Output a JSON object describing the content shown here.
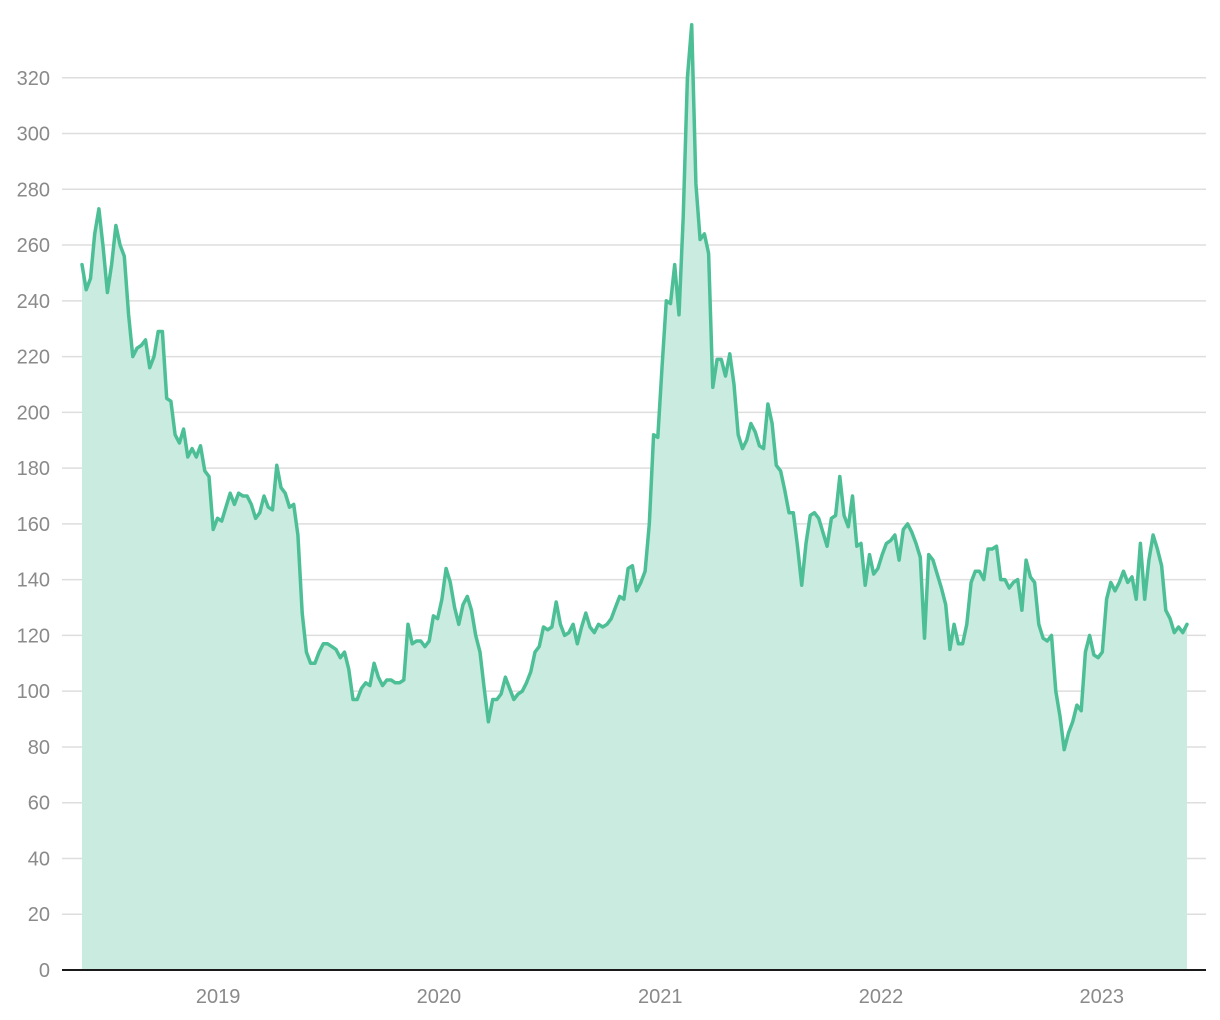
{
  "chart_data": {
    "type": "area",
    "title": "",
    "xlabel": "",
    "ylabel": "",
    "ylim": [
      0,
      340
    ],
    "yticks": [
      0,
      20,
      40,
      60,
      80,
      100,
      120,
      140,
      160,
      180,
      200,
      220,
      240,
      260,
      280,
      300,
      320
    ],
    "xlim": [
      "2018-05-21",
      "2023-05-22"
    ],
    "xticks": [
      {
        "date": "2019-01-01",
        "label": "2019"
      },
      {
        "date": "2020-01-01",
        "label": "2020"
      },
      {
        "date": "2021-01-01",
        "label": "2021"
      },
      {
        "date": "2022-01-01",
        "label": "2022"
      },
      {
        "date": "2023-01-01",
        "label": "2023"
      }
    ],
    "grid": true,
    "legend": "none",
    "colors": {
      "line": "#4dbf96",
      "fill": "#c9ebe0",
      "grid": "#dedede",
      "axis": "#1a1a1a",
      "tick": "#8a8a8a"
    },
    "series": [
      {
        "x": [
          "2018-05-21",
          "2018-05-28",
          "2018-06-04",
          "2018-06-11",
          "2018-06-18",
          "2018-06-25",
          "2018-07-02",
          "2018-07-09",
          "2018-07-16",
          "2018-07-23",
          "2018-07-30",
          "2018-08-06",
          "2018-08-13",
          "2018-08-20",
          "2018-08-27",
          "2018-09-03",
          "2018-09-10",
          "2018-09-17",
          "2018-09-24",
          "2018-10-01",
          "2018-10-08",
          "2018-10-15",
          "2018-10-22",
          "2018-10-29",
          "2018-11-05",
          "2018-11-12",
          "2018-11-19",
          "2018-11-26",
          "2018-12-03",
          "2018-12-10",
          "2018-12-17",
          "2018-12-24",
          "2018-12-31",
          "2019-01-07",
          "2019-01-14",
          "2019-01-21",
          "2019-01-28",
          "2019-02-04",
          "2019-02-11",
          "2019-02-18",
          "2019-02-25",
          "2019-03-04",
          "2019-03-11",
          "2019-03-18",
          "2019-03-25",
          "2019-04-01",
          "2019-04-08",
          "2019-04-15",
          "2019-04-22",
          "2019-04-29",
          "2019-05-06",
          "2019-05-13",
          "2019-05-20",
          "2019-05-27",
          "2019-06-03",
          "2019-06-10",
          "2019-06-17",
          "2019-06-24",
          "2019-07-01",
          "2019-07-08",
          "2019-07-15",
          "2019-07-22",
          "2019-07-29",
          "2019-08-05",
          "2019-08-12",
          "2019-08-19",
          "2019-08-26",
          "2019-09-02",
          "2019-09-09",
          "2019-09-16",
          "2019-09-23",
          "2019-09-30",
          "2019-10-07",
          "2019-10-14",
          "2019-10-21",
          "2019-10-28",
          "2019-11-04",
          "2019-11-11",
          "2019-11-18",
          "2019-11-25",
          "2019-12-02",
          "2019-12-09",
          "2019-12-16",
          "2019-12-23",
          "2019-12-30",
          "2020-01-06",
          "2020-01-13",
          "2020-01-20",
          "2020-01-27",
          "2020-02-03",
          "2020-02-10",
          "2020-02-17",
          "2020-02-24",
          "2020-03-02",
          "2020-03-09",
          "2020-03-16",
          "2020-03-23",
          "2020-03-30",
          "2020-04-06",
          "2020-04-13",
          "2020-04-20",
          "2020-04-27",
          "2020-05-04",
          "2020-05-11",
          "2020-05-18",
          "2020-05-25",
          "2020-06-01",
          "2020-06-08",
          "2020-06-15",
          "2020-06-22",
          "2020-06-29",
          "2020-07-06",
          "2020-07-13",
          "2020-07-20",
          "2020-07-27",
          "2020-08-03",
          "2020-08-10",
          "2020-08-17",
          "2020-08-24",
          "2020-08-31",
          "2020-09-07",
          "2020-09-14",
          "2020-09-21",
          "2020-09-28",
          "2020-10-05",
          "2020-10-12",
          "2020-10-19",
          "2020-10-26",
          "2020-11-02",
          "2020-11-09",
          "2020-11-16",
          "2020-11-23",
          "2020-11-30",
          "2020-12-07",
          "2020-12-14",
          "2020-12-21",
          "2020-12-28",
          "2021-01-04",
          "2021-01-11",
          "2021-01-18",
          "2021-01-25",
          "2021-02-01",
          "2021-02-08",
          "2021-02-15",
          "2021-02-22",
          "2021-03-01",
          "2021-03-08",
          "2021-03-15",
          "2021-03-22",
          "2021-03-29",
          "2021-04-05",
          "2021-04-12",
          "2021-04-19",
          "2021-04-26",
          "2021-05-03",
          "2021-05-10",
          "2021-05-17",
          "2021-05-24",
          "2021-05-31",
          "2021-06-07",
          "2021-06-14",
          "2021-06-21",
          "2021-06-28",
          "2021-07-05",
          "2021-07-12",
          "2021-07-19",
          "2021-07-26",
          "2021-08-02",
          "2021-08-09",
          "2021-08-16",
          "2021-08-23",
          "2021-08-30",
          "2021-09-06",
          "2021-09-13",
          "2021-09-20",
          "2021-09-27",
          "2021-10-04",
          "2021-10-11",
          "2021-10-18",
          "2021-10-25",
          "2021-11-01",
          "2021-11-08",
          "2021-11-15",
          "2021-11-22",
          "2021-11-29",
          "2021-12-06",
          "2021-12-13",
          "2021-12-20",
          "2021-12-27",
          "2022-01-03",
          "2022-01-10",
          "2022-01-17",
          "2022-01-24",
          "2022-01-31",
          "2022-02-07",
          "2022-02-14",
          "2022-02-21",
          "2022-02-28",
          "2022-03-07",
          "2022-03-14",
          "2022-03-21",
          "2022-03-28",
          "2022-04-04",
          "2022-04-11",
          "2022-04-18",
          "2022-04-25",
          "2022-05-02",
          "2022-05-09",
          "2022-05-16",
          "2022-05-23",
          "2022-05-30",
          "2022-06-06",
          "2022-06-13",
          "2022-06-20",
          "2022-06-27",
          "2022-07-04",
          "2022-07-11",
          "2022-07-18",
          "2022-07-25",
          "2022-08-01",
          "2022-08-08",
          "2022-08-15",
          "2022-08-22",
          "2022-08-29",
          "2022-09-05",
          "2022-09-12",
          "2022-09-19",
          "2022-09-26",
          "2022-10-03",
          "2022-10-10",
          "2022-10-17",
          "2022-10-24",
          "2022-10-31",
          "2022-11-07",
          "2022-11-14",
          "2022-11-21",
          "2022-11-28",
          "2022-12-05",
          "2022-12-12",
          "2022-12-19",
          "2022-12-26",
          "2023-01-02",
          "2023-01-09",
          "2023-01-16",
          "2023-01-23",
          "2023-01-30",
          "2023-02-06",
          "2023-02-13",
          "2023-02-20",
          "2023-02-27",
          "2023-03-06",
          "2023-03-13",
          "2023-03-20",
          "2023-03-27",
          "2023-04-03",
          "2023-04-10",
          "2023-04-17",
          "2023-04-24",
          "2023-05-01",
          "2023-05-08",
          "2023-05-15",
          "2023-05-22"
        ],
        "y": [
          253,
          244,
          248,
          264,
          273,
          259,
          243,
          253,
          267,
          260,
          256,
          235,
          220,
          223,
          224,
          226,
          216,
          220,
          229,
          229,
          205,
          204,
          192,
          189,
          194,
          184,
          187,
          184,
          188,
          179,
          177,
          158,
          162,
          161,
          166,
          171,
          167,
          171,
          170,
          170,
          167,
          162,
          164,
          170,
          166,
          165,
          181,
          173,
          171,
          166,
          167,
          156,
          128,
          114,
          110,
          110,
          114,
          117,
          117,
          116,
          115,
          112,
          114,
          108,
          97,
          97,
          101,
          103,
          102,
          110,
          105,
          102,
          104,
          104,
          103,
          103,
          104,
          124,
          117,
          118,
          118,
          116,
          118,
          127,
          126,
          133,
          144,
          139,
          130,
          124,
          131,
          134,
          129,
          120,
          114,
          101,
          89,
          97,
          97,
          99,
          105,
          101,
          97,
          99,
          100,
          103,
          107,
          114,
          116,
          123,
          122,
          123,
          132,
          124,
          120,
          121,
          124,
          117,
          123,
          128,
          123,
          121,
          124,
          123,
          124,
          126,
          130,
          134,
          133,
          144,
          145,
          136,
          139,
          143,
          160,
          192,
          191,
          216,
          240,
          239,
          253,
          235,
          270,
          320,
          339,
          282,
          262,
          264,
          257,
          209,
          219,
          219,
          213,
          221,
          210,
          192,
          187,
          190,
          196,
          193,
          188,
          187,
          203,
          196,
          181,
          179,
          172,
          164,
          164,
          152,
          138,
          153,
          163,
          164,
          162,
          157,
          152,
          162,
          163,
          177,
          163,
          159,
          170,
          152,
          153,
          138,
          149,
          142,
          144,
          149,
          153,
          154,
          156,
          147,
          158,
          160,
          157,
          153,
          148,
          119,
          149,
          147,
          142,
          137,
          131,
          115,
          124,
          117,
          117,
          124,
          139,
          143,
          143,
          140,
          151,
          151,
          152,
          140,
          140,
          137,
          139,
          140,
          129,
          147,
          141,
          139,
          124,
          119,
          118,
          120,
          100,
          91,
          79,
          85,
          89,
          95,
          93,
          114,
          120,
          113,
          112,
          114,
          133,
          139,
          136,
          139,
          143,
          139,
          141,
          133,
          153,
          133,
          147,
          156,
          151,
          145,
          129,
          126,
          121,
          123,
          121,
          124
        ]
      }
    ]
  }
}
